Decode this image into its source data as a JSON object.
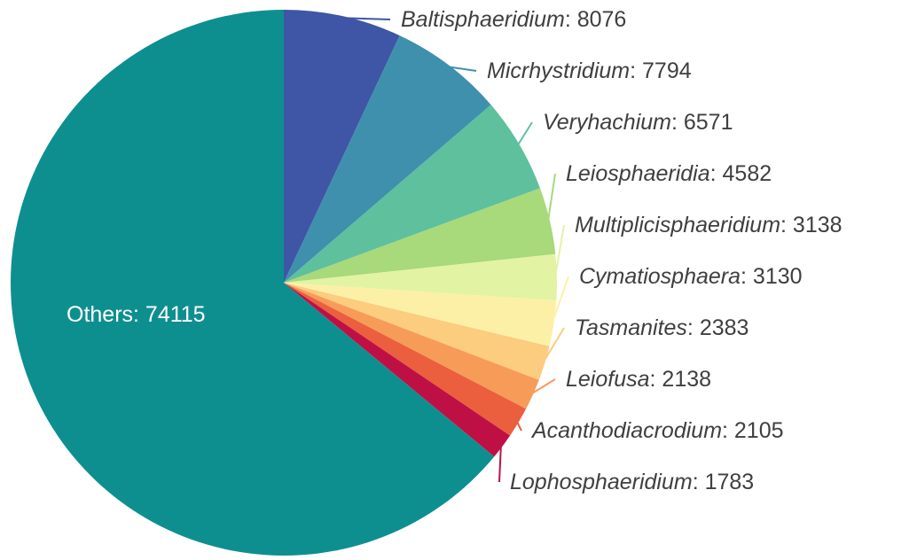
{
  "chart_data": {
    "type": "pie",
    "title": "",
    "separator": ": ",
    "direction": "clockwise",
    "start_angle_deg": 0,
    "label_text_color": "#3f3f3f",
    "inner_label_color": "#ffffff",
    "slices": [
      {
        "label": "Baltisphaeridium",
        "value": 8076,
        "color": "#3e56a5",
        "italic": true,
        "inner_label": false
      },
      {
        "label": "Micrhystridium",
        "value": 7794,
        "color": "#3f90ad",
        "italic": true,
        "inner_label": false
      },
      {
        "label": "Veryhachium",
        "value": 6571,
        "color": "#5fc09e",
        "italic": true,
        "inner_label": false
      },
      {
        "label": "Leiosphaeridia",
        "value": 4582,
        "color": "#a8d97a",
        "italic": true,
        "inner_label": false
      },
      {
        "label": "Multiplicisphaeridium",
        "value": 3138,
        "color": "#e2f3a3",
        "italic": true,
        "inner_label": false
      },
      {
        "label": "Cymatiosphaera",
        "value": 3130,
        "color": "#fcf0a6",
        "italic": true,
        "inner_label": false
      },
      {
        "label": "Tasmanites",
        "value": 2383,
        "color": "#fccc7f",
        "italic": true,
        "inner_label": false
      },
      {
        "label": "Leiofusa",
        "value": 2138,
        "color": "#f79c58",
        "italic": true,
        "inner_label": false
      },
      {
        "label": "Acanthodiacrodium",
        "value": 2105,
        "color": "#eb5f3e",
        "italic": true,
        "inner_label": false
      },
      {
        "label": "Lophosphaeridium",
        "value": 1783,
        "color": "#bf1045",
        "italic": true,
        "inner_label": false
      },
      {
        "label": "Others",
        "value": 74115,
        "color": "#0e8f8f",
        "italic": false,
        "inner_label": true
      }
    ]
  }
}
